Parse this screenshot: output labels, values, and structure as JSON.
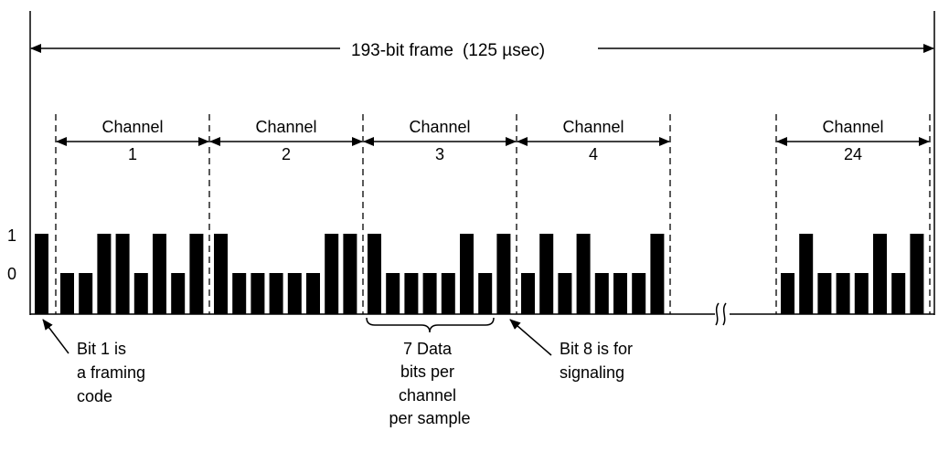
{
  "frame": {
    "label": "193-bit frame",
    "duration": "(125 µsec)"
  },
  "channels": [
    {
      "title": "Channel",
      "number": "1",
      "bits": [
        0,
        0,
        1,
        1,
        0,
        1,
        0,
        1
      ]
    },
    {
      "title": "Channel",
      "number": "2",
      "bits": [
        1,
        0,
        0,
        0,
        0,
        0,
        1,
        1
      ]
    },
    {
      "title": "Channel",
      "number": "3",
      "bits": [
        1,
        0,
        0,
        0,
        0,
        1,
        0,
        1
      ]
    },
    {
      "title": "Channel",
      "number": "4",
      "bits": [
        0,
        1,
        0,
        1,
        0,
        0,
        0,
        1
      ]
    },
    {
      "title": "Channel",
      "number": "24",
      "bits": [
        0,
        1,
        0,
        0,
        0,
        1,
        0,
        1
      ]
    }
  ],
  "framing_bit": 1,
  "levels": {
    "high": "1",
    "low": "0"
  },
  "annotations": {
    "framing": [
      "Bit 1 is",
      "a framing",
      "code"
    ],
    "data": [
      "7 Data",
      "bits per",
      "channel",
      "per sample"
    ],
    "signaling": [
      "Bit 8 is for",
      "signaling"
    ]
  },
  "colors": {
    "ink": "#000000",
    "paper": "#ffffff"
  }
}
